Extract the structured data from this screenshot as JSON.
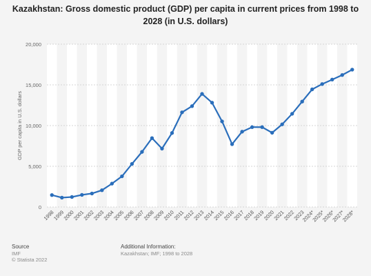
{
  "chart_data": {
    "type": "line",
    "title": "Kazakhstan: Gross domestic product (GDP) per capita in current prices from 1998 to 2028 (in U.S. dollars)",
    "ylabel": "GDP per capita in U.S. dollars",
    "xlabel": "",
    "ylim": [
      0,
      20000
    ],
    "yticks": [
      0,
      5000,
      10000,
      15000,
      20000
    ],
    "ytick_labels": [
      "0",
      "5,000",
      "10,000",
      "15,000",
      "20,000"
    ],
    "grid": true,
    "series_color": "#2a6ebb",
    "categories": [
      "1998",
      "1999",
      "2000",
      "2001",
      "2002",
      "2003",
      "2004",
      "2005",
      "2006",
      "2007",
      "2008",
      "2009",
      "2010",
      "2011",
      "2012",
      "2013",
      "2014",
      "2015",
      "2016",
      "2017",
      "2018",
      "2019",
      "2020",
      "2021",
      "2022",
      "2023",
      "2024*",
      "2025*",
      "2026*",
      "2027*",
      "2028*"
    ],
    "series": [
      {
        "values": [
          1470,
          1150,
          1230,
          1490,
          1660,
          2060,
          2870,
          3770,
          5290,
          6770,
          8460,
          7170,
          9090,
          11630,
          12390,
          13890,
          12810,
          10510,
          7720,
          9250,
          9810,
          9810,
          9120,
          10150,
          11450,
          12950,
          14450,
          15100,
          15650,
          16210,
          16870
        ]
      }
    ]
  },
  "footer": {
    "source_label": "Source",
    "source_name": "IMF",
    "copyright": "© Statista 2022",
    "additional_label": "Additional Information:",
    "additional_text": "Kazakhstan; IMF; 1998 to 2028"
  }
}
